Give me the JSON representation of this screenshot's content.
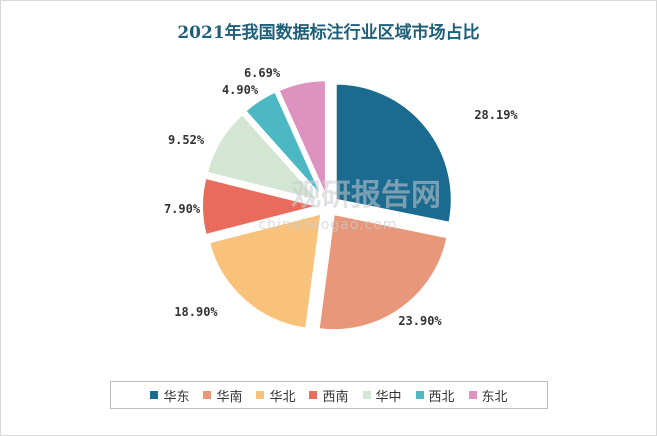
{
  "chart_data": {
    "type": "pie",
    "title": "2021年我国数据标注行业区域市场占比",
    "exploded": true,
    "categories": [
      "华东",
      "华南",
      "华北",
      "西南",
      "华中",
      "西北",
      "东北"
    ],
    "values": [
      28.19,
      23.9,
      18.9,
      7.9,
      9.52,
      4.9,
      6.69
    ],
    "labels": [
      "28.19%",
      "23.90%",
      "18.90%",
      "7.90%",
      "9.52%",
      "4.90%",
      "6.69%"
    ],
    "colors": [
      "#1b6a8f",
      "#e8977a",
      "#f9c27a",
      "#e86b5c",
      "#d3e6d3",
      "#4bb8c4",
      "#de92c0"
    ],
    "legend_position": "bottom"
  },
  "watermark": {
    "main": "观研报告网",
    "sub": "chinabaogao.com"
  }
}
